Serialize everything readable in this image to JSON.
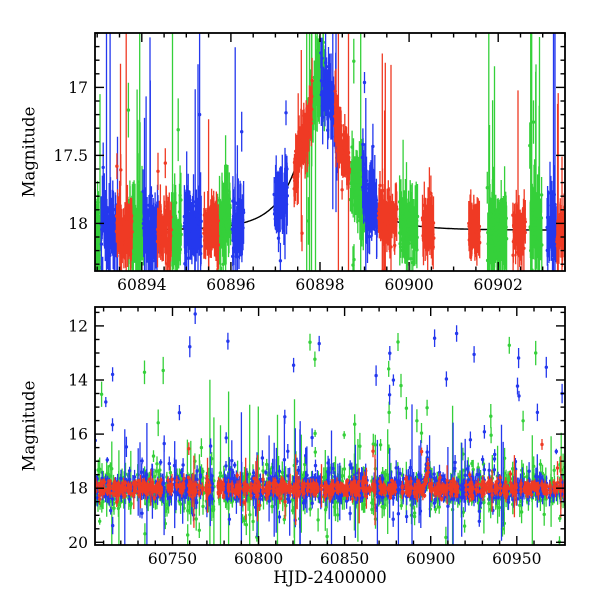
{
  "figure": {
    "background": "#ffffff",
    "axis_color": "#000000",
    "text_color": "#000000"
  },
  "chart_data": [
    {
      "id": "top-panel",
      "type": "scatter",
      "description": "Zoom on brightening event peaking near HJD 60898; three photometric bands with error bars and a black model curve",
      "title": "",
      "xlabel": "",
      "ylabel": "Magnitude",
      "xlim": [
        60892.95,
        60903.5
      ],
      "ylim": [
        16.6,
        18.35
      ],
      "y_inverted": true,
      "xticks": [
        60894,
        60896,
        60898,
        60900,
        60902
      ],
      "yticks": [
        "17",
        "17.5",
        "18"
      ],
      "xminor": 0.5,
      "yminor": 0.1,
      "grid": false,
      "legend": false,
      "model_curve": {
        "shape": "paczynski",
        "t0": 60898.05,
        "tE": 0.85,
        "u0": 0.38,
        "baseline_mag": 18.05,
        "peak_mag": 16.94,
        "color": "#000000",
        "draw_curve": true
      },
      "series": [
        {
          "name": "green-band",
          "color": "#35d03a",
          "seed": 101,
          "phase": 0.7,
          "jitter": 0.09,
          "window": 0.34,
          "cadence": 0.006,
          "skip": 0.15,
          "sigma": 0.12,
          "err": 0.16,
          "bigerr_frac": 0.06,
          "tail_frac": 0.06,
          "tail_bias": 0.6,
          "tail_amp": 1.0,
          "outlier": null
        },
        {
          "name": "blue-band",
          "color": "#2438ee",
          "seed": 202,
          "phase": 0.02,
          "jitter": 0.08,
          "window": 0.3,
          "cadence": 0.006,
          "skip": 0.15,
          "sigma": 0.11,
          "err": 0.15,
          "bigerr_frac": 0.06,
          "tail_frac": 0.05,
          "tail_bias": 0.5,
          "tail_amp": 0.9,
          "outlier": null
        },
        {
          "name": "red-band",
          "color": "#ef3a24",
          "seed": 303,
          "phase": 0.38,
          "jitter": 0.09,
          "window": 0.32,
          "cadence": 0.0055,
          "skip": 0.12,
          "sigma": 0.075,
          "err": 0.13,
          "bigerr_frac": 0.03,
          "tail_frac": 0.04,
          "tail_bias": 0.6,
          "tail_amp": 0.7,
          "outlier": null
        }
      ]
    },
    {
      "id": "bottom-panel",
      "type": "scatter",
      "description": "Full light curve; dense band at magnitude ~18 with bright outliers up to magnitude ~12",
      "title": "",
      "xlabel": "HJD-2400000",
      "ylabel": "Magnitude",
      "xlim": [
        60705,
        60978
      ],
      "ylim": [
        11.3,
        20.1
      ],
      "y_inverted": true,
      "xticks": [
        60750,
        60800,
        60850,
        60900,
        60950
      ],
      "yticks": [
        "12",
        "14",
        "16",
        "18",
        "20"
      ],
      "xminor": 10,
      "yminor": 0.5,
      "grid": false,
      "legend": false,
      "model_curve": {
        "shape": "paczynski",
        "t0": 60898.05,
        "tE": 0.85,
        "u0": 0.38,
        "baseline_mag": 18.0,
        "peak_mag": 16.9,
        "color": "#000000",
        "draw_curve": false
      },
      "series": [
        {
          "name": "green-band",
          "color": "#35d03a",
          "seed": 404,
          "phase": 0.7,
          "jitter": 0.12,
          "window": 0.3,
          "cadence": 0.06,
          "skip": 0.22,
          "sigma": 0.33,
          "err": 0.28,
          "bigerr_frac": 0.05,
          "tail_frac": 0.12,
          "tail_bias": 0.72,
          "tail_amp": 1.6,
          "outlier": {
            "frac": 0.022,
            "min": 12.3,
            "max": 16.8
          }
        },
        {
          "name": "blue-band",
          "color": "#2438ee",
          "seed": 505,
          "phase": 0.05,
          "jitter": 0.12,
          "window": 0.3,
          "cadence": 0.06,
          "skip": 0.22,
          "sigma": 0.22,
          "err": 0.22,
          "bigerr_frac": 0.05,
          "tail_frac": 0.1,
          "tail_bias": 0.35,
          "tail_amp": 1.2,
          "outlier": {
            "frac": 0.03,
            "min": 11.55,
            "max": 16.8
          }
        },
        {
          "name": "red-band",
          "color": "#ef3a24",
          "seed": 606,
          "phase": 0.4,
          "jitter": 0.12,
          "window": 0.28,
          "cadence": 0.055,
          "skip": 0.25,
          "sigma": 0.13,
          "err": 0.15,
          "bigerr_frac": 0.03,
          "tail_frac": 0.05,
          "tail_bias": 0.6,
          "tail_amp": 0.5,
          "outlier": {
            "frac": 0.006,
            "min": 16.2,
            "max": 17.4
          }
        }
      ]
    }
  ]
}
